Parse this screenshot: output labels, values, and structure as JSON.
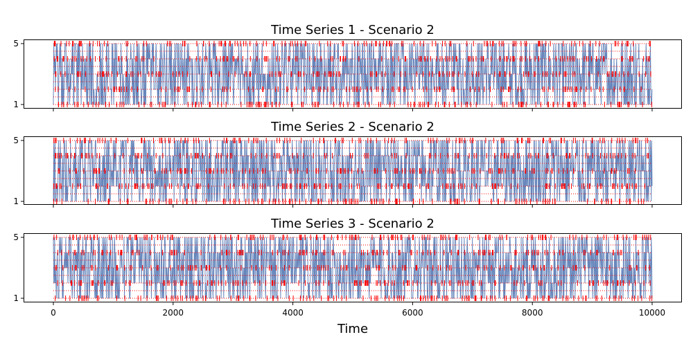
{
  "chart_data": {
    "type": "line",
    "xlabel": "Time",
    "x_range": [
      0,
      10000
    ],
    "x_ticks": [
      0,
      2000,
      4000,
      6000,
      8000,
      10000
    ],
    "y_ticks": [
      1,
      5
    ],
    "ylim": [
      1,
      5
    ],
    "colors": {
      "line": "#4c72b0",
      "marker": "#ff0000"
    },
    "marker": "|",
    "grid": false,
    "panels": [
      {
        "title": "Time Series 1 - Scenario 2",
        "seed": 1
      },
      {
        "title": "Time Series 2 - Scenario 2",
        "seed": 2
      },
      {
        "title": "Time Series 3 - Scenario 2",
        "seed": 3
      }
    ]
  }
}
